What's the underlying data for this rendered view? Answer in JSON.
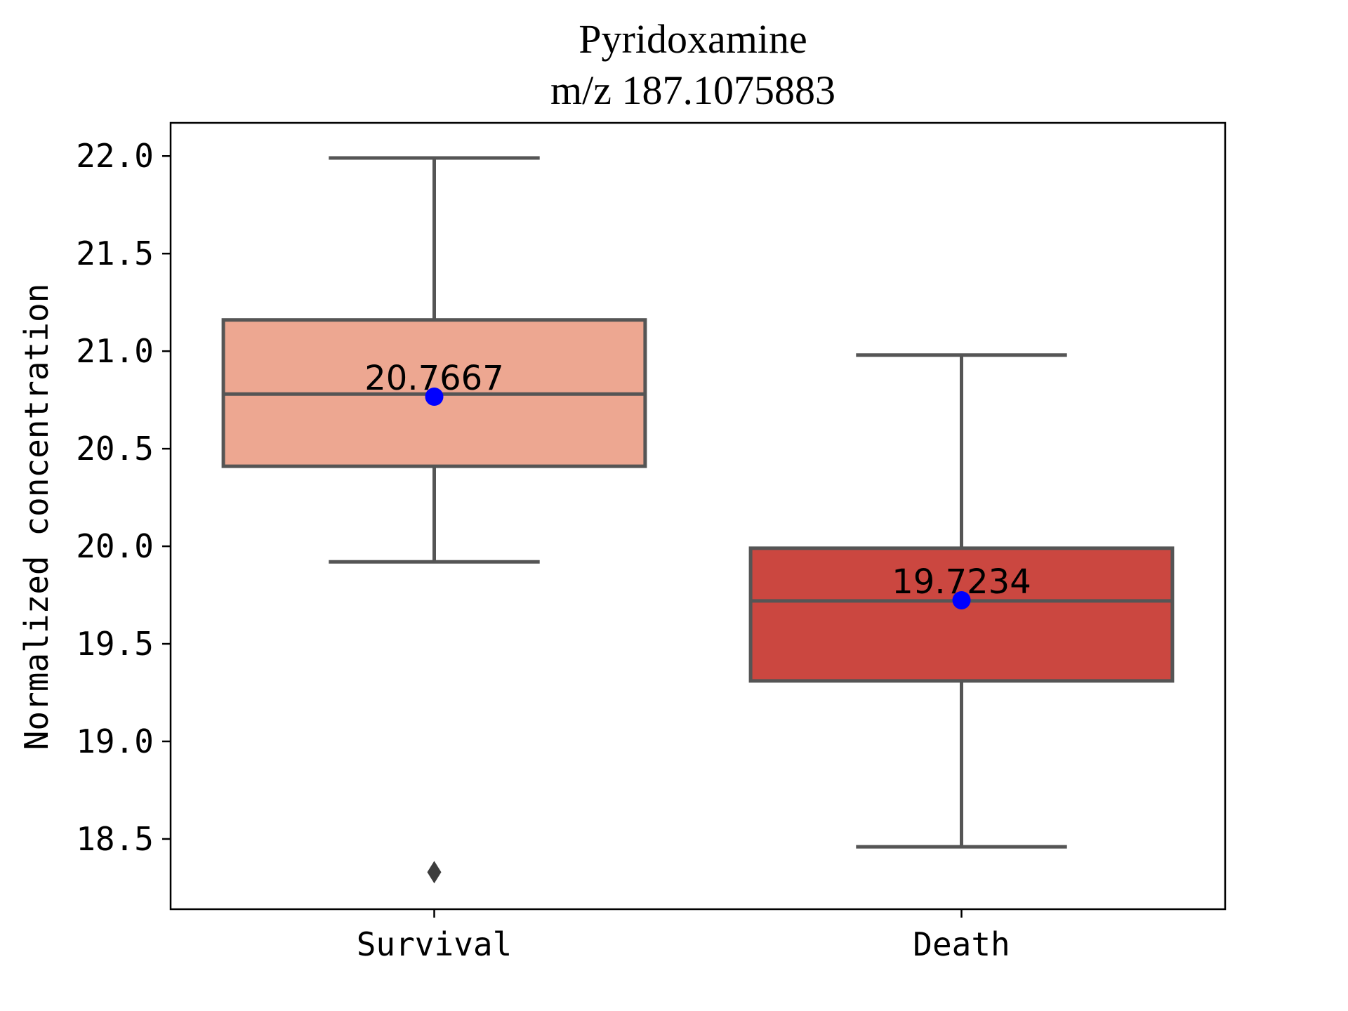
{
  "chart_data": {
    "type": "box",
    "title": "Pyridoxamine",
    "subtitle": "m/z  187.1075883",
    "xlabel": "",
    "ylabel": "Normalized concentration",
    "ylim": [
      18.14,
      22.17
    ],
    "yticks": [
      "18.5",
      "19.0",
      "19.5",
      "20.0",
      "20.5",
      "21.0",
      "21.5",
      "22.0"
    ],
    "grid": false,
    "categories": [
      "Survival",
      "Death"
    ],
    "boxes": [
      {
        "category": "Survival",
        "whisker_low": 19.92,
        "q1": 20.41,
        "median": 20.78,
        "q3": 21.16,
        "whisker_high": 21.99,
        "mean": 20.7667,
        "mean_label": "20.7667",
        "outliers": [
          18.33
        ],
        "color": "#eda791"
      },
      {
        "category": "Death",
        "whisker_low": 18.46,
        "q1": 19.31,
        "median": 19.72,
        "q3": 19.99,
        "whisker_high": 20.98,
        "mean": 19.7234,
        "mean_label": "19.7234",
        "outliers": [],
        "color": "#cb4740"
      }
    ],
    "colors": {
      "line": "#555555",
      "mean_marker": "#0000ff",
      "frame": "#000000"
    }
  }
}
